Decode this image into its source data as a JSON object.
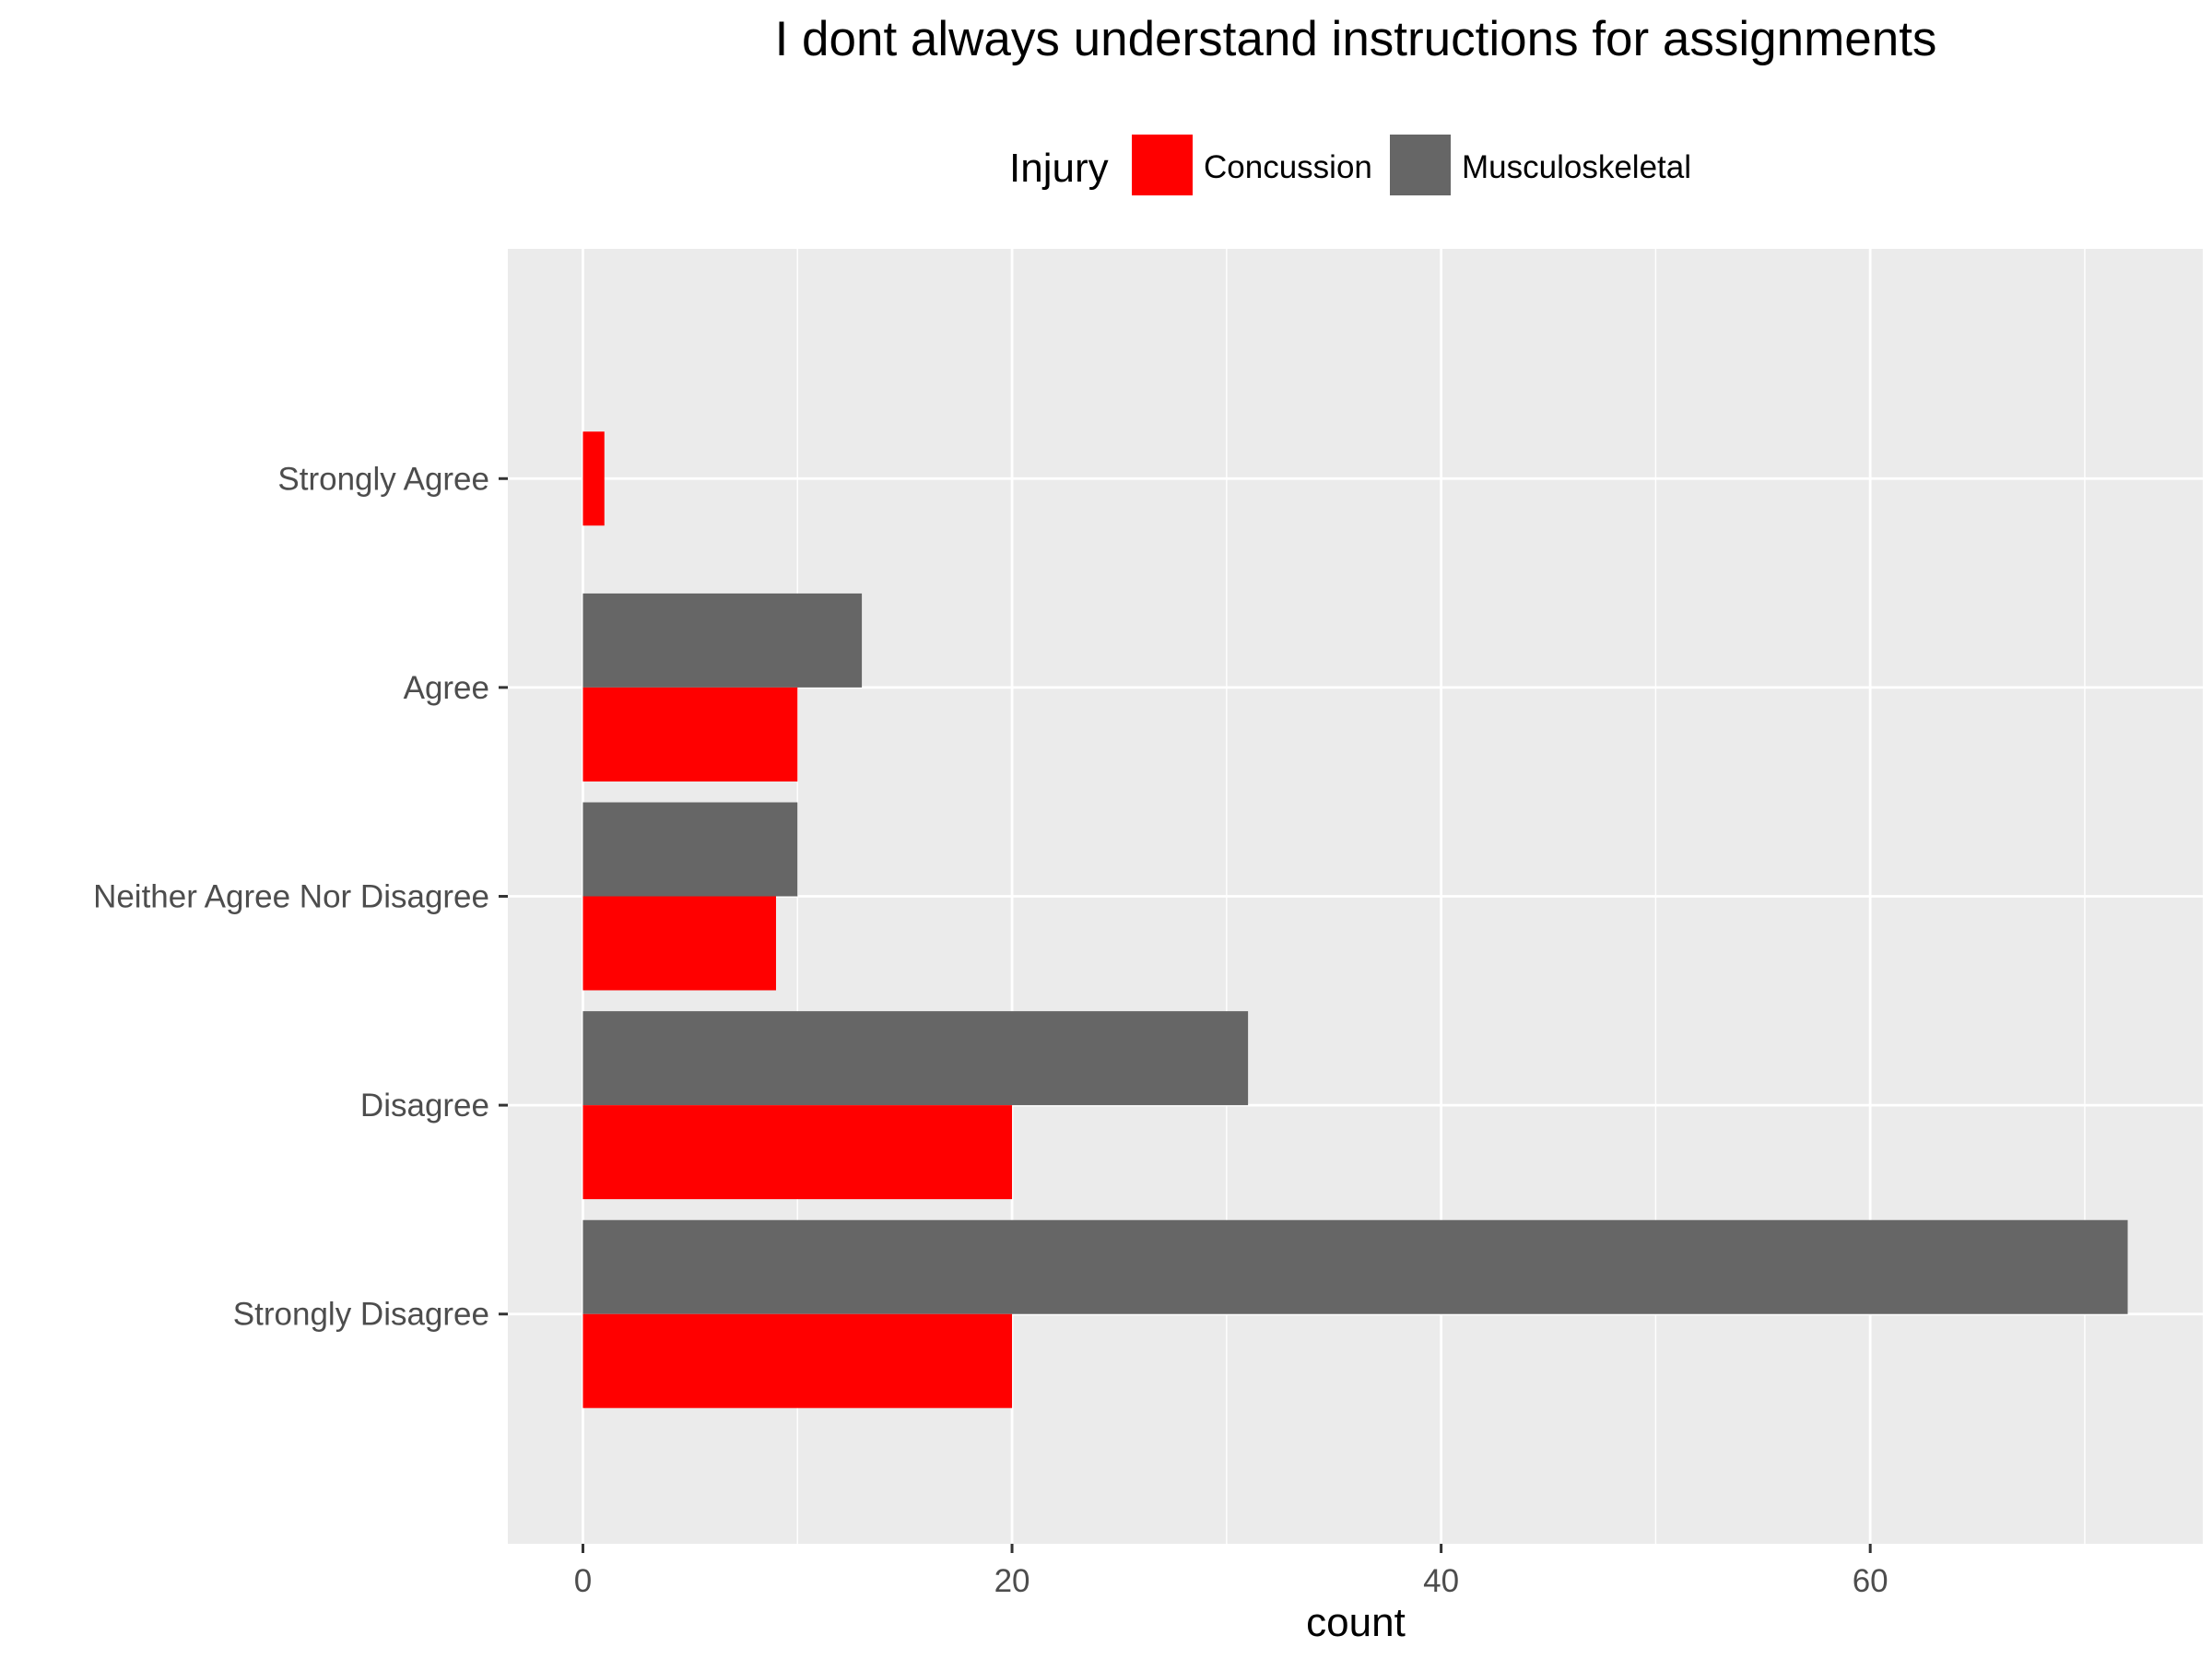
{
  "chart_data": {
    "type": "bar",
    "orientation": "horizontal",
    "title": "I dont always understand instructions for assignments",
    "xlabel": "count",
    "ylabel": "",
    "xlim": [
      -3.5,
      75.5
    ],
    "x_ticks": [
      0,
      20,
      40,
      60
    ],
    "x_minor_ticks": [
      10,
      30,
      50,
      70
    ],
    "categories": [
      "Strongly Agree",
      "Agree",
      "Neither Agree Nor Disagree",
      "Disagree",
      "Strongly Disagree"
    ],
    "legend": {
      "title": "Injury",
      "position": "top"
    },
    "series": [
      {
        "name": "Concussion",
        "color": "#ff0000",
        "values": [
          1,
          10,
          9,
          20,
          20
        ]
      },
      {
        "name": "Musculoskeletal",
        "color": "#666666",
        "values": [
          null,
          13,
          10,
          31,
          72
        ]
      }
    ],
    "panel_background": "#ebebeb",
    "gridline_color": "#ffffff",
    "grid": true
  }
}
